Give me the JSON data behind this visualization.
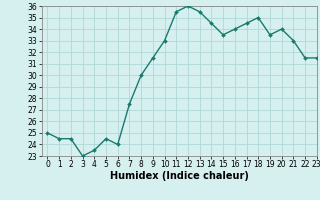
{
  "x": [
    0,
    1,
    2,
    3,
    4,
    5,
    6,
    7,
    8,
    9,
    10,
    11,
    12,
    13,
    14,
    15,
    16,
    17,
    18,
    19,
    20,
    21,
    22,
    23
  ],
  "y": [
    25.0,
    24.5,
    24.5,
    23.0,
    23.5,
    24.5,
    24.0,
    27.5,
    30.0,
    31.5,
    33.0,
    35.5,
    36.0,
    35.5,
    34.5,
    33.5,
    34.0,
    34.5,
    35.0,
    33.5,
    34.0,
    33.0,
    31.5,
    31.5
  ],
  "line_color": "#1a7a6e",
  "marker_color": "#1a7a6e",
  "bg_color": "#d6f0f0",
  "grid_color": "#b0d8d8",
  "xlabel": "Humidex (Indice chaleur)",
  "ylim": [
    23,
    36
  ],
  "xlim": [
    -0.5,
    23
  ],
  "yticks": [
    23,
    24,
    25,
    26,
    27,
    28,
    29,
    30,
    31,
    32,
    33,
    34,
    35,
    36
  ],
  "xticks": [
    0,
    1,
    2,
    3,
    4,
    5,
    6,
    7,
    8,
    9,
    10,
    11,
    12,
    13,
    14,
    15,
    16,
    17,
    18,
    19,
    20,
    21,
    22,
    23
  ],
  "tick_label_fontsize": 5.5,
  "xlabel_fontsize": 7.0,
  "line_width": 1.0,
  "marker_size": 2.0
}
